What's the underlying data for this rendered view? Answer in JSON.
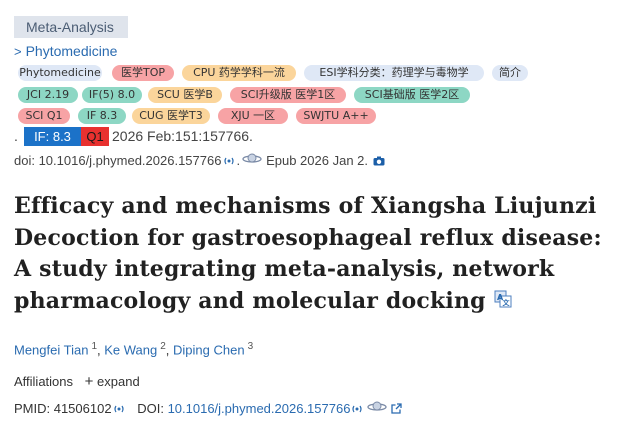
{
  "article_type": "Meta-Analysis",
  "journal_link": "Phytomedicine",
  "tags": [
    {
      "text": "Phytomedicine",
      "bg": "#dfe8f6"
    },
    {
      "text": "医学TOP",
      "bg": "#f7a3a5"
    },
    {
      "text": "CPU 药学学科一流",
      "bg": "#fbd59b"
    },
    {
      "text": "ESI学科分类：药理学与毒物学",
      "bg": "#dfe8f6"
    },
    {
      "text": "简介",
      "bg": "#dfe8f6"
    },
    {
      "text": "JCI 2.19",
      "bg": "#8dd7c4"
    },
    {
      "text": "IF(5) 8.0",
      "bg": "#8dd7c4"
    },
    {
      "text": "SCU 医学B",
      "bg": "#fbd59b"
    },
    {
      "text": "SCI升级版 医学1区",
      "bg": "#f7a3a5"
    },
    {
      "text": "SCI基础版 医学2区",
      "bg": "#8dd7c4"
    },
    {
      "text": "SCI Q1",
      "bg": "#f7a3a5"
    },
    {
      "text": "IF 8.3",
      "bg": "#8dd7c4"
    },
    {
      "text": "CUG 医学T3",
      "bg": "#fbd59b"
    },
    {
      "text": "XJU 一区",
      "bg": "#f7a3a5"
    },
    {
      "text": "SWJTU A++",
      "bg": "#f7a3a5"
    }
  ],
  "metrics": {
    "dot": ".",
    "impact_factor": "IF: 8.3",
    "quartile": "Q1",
    "pub_info": "2026 Feb:151:157766."
  },
  "doi_line": {
    "doi": "doi: 10.1016/j.phymed.2026.157766",
    "period": ".",
    "epub": "Epub 2026 Jan 2."
  },
  "title": "Efficacy and mechanisms of Xiangsha Liujunzi Decoction for gastroesophageal reflux disease: A study integrating meta-analysis, network pharmacology and molecular docking",
  "authors": [
    {
      "name": "Mengfei Tian",
      "aff": "1"
    },
    {
      "name": "Ke Wang",
      "aff": "2"
    },
    {
      "name": "Diping Chen",
      "aff": "3"
    }
  ],
  "affiliations_label": "Affiliations",
  "expand_label": "expand",
  "pmid": "PMID: 41506102",
  "doi_label": "DOI:",
  "doi_value": "10.1016/j.phymed.2026.157766",
  "colors": {
    "link": "#2a6bb0",
    "if_blue": "#1c72c8",
    "q1_red": "#e8312f"
  }
}
